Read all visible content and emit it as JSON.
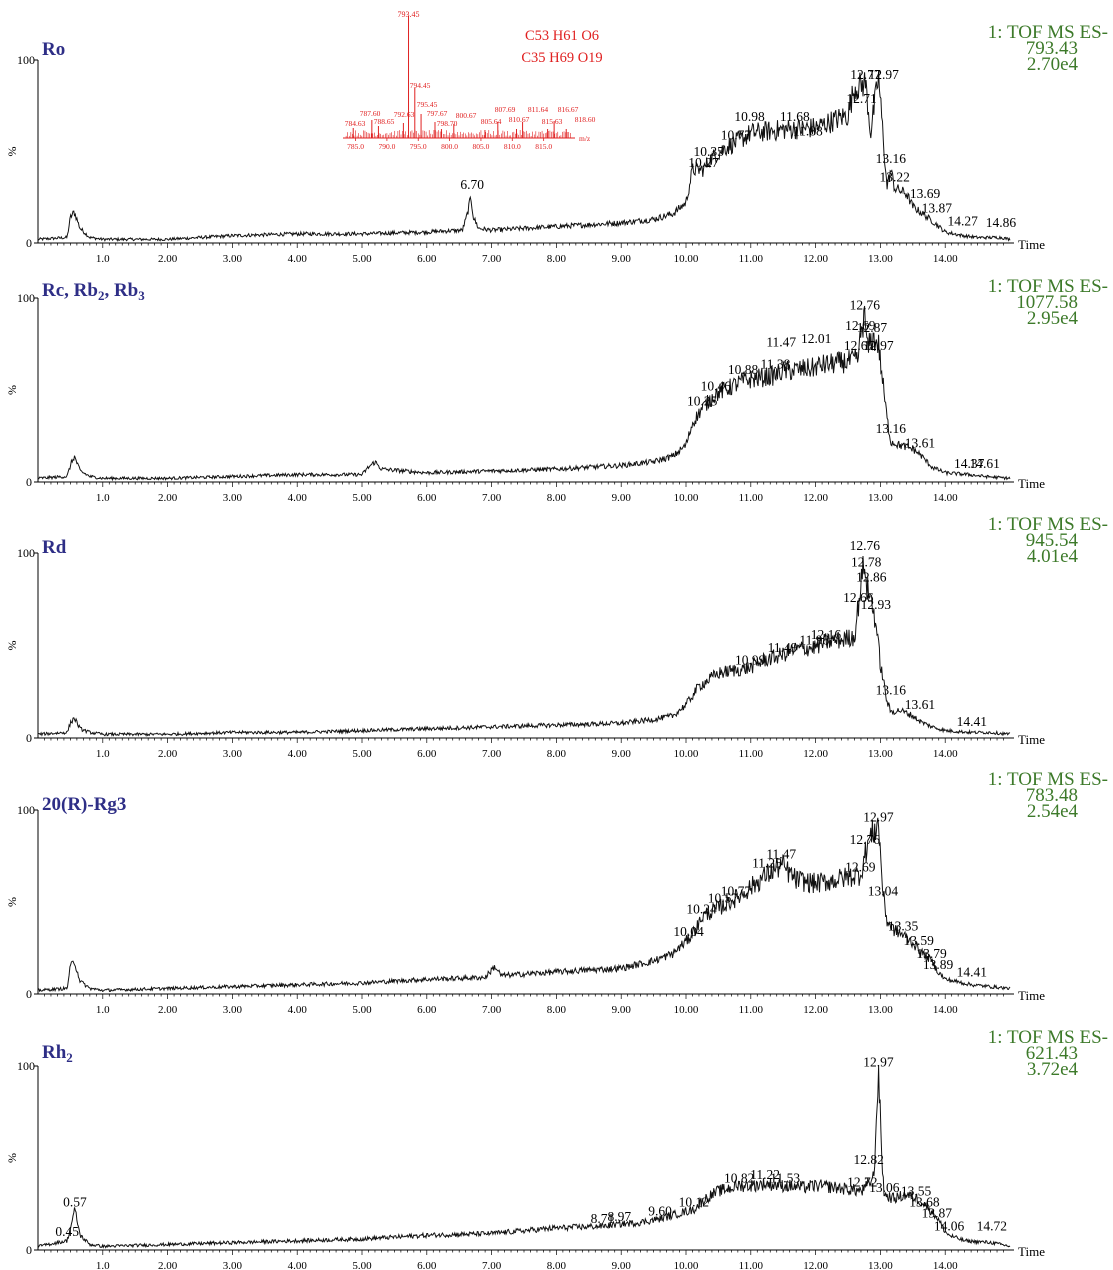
{
  "colors": {
    "trace": "#111111",
    "compound": "#2e2e86",
    "info": "#3d7a2a",
    "inset": "#e02020"
  },
  "chart_data": [
    {
      "type": "line",
      "compound": "Ro",
      "info": [
        "1: TOF MS ES-",
        "793.43",
        "2.70e4"
      ],
      "xlabel": "Time",
      "ylabel": "%",
      "xlim": [
        0,
        15
      ],
      "ylim": [
        0,
        100
      ],
      "x_ticks": [
        "1.0",
        "2.00",
        "3.00",
        "4.00",
        "5.00",
        "6.00",
        "7.00",
        "8.00",
        "9.00",
        "10.00",
        "11.00",
        "12.00",
        "13.00",
        "14.00"
      ],
      "y_ticks": [
        "100",
        "0"
      ],
      "series": [
        {
          "x": [
            0,
            0.45,
            0.5,
            0.56,
            0.65,
            0.8,
            1,
            2,
            3,
            4,
            5,
            6,
            6.55,
            6.62,
            6.68,
            6.72,
            6.8,
            7,
            8,
            9,
            9.5,
            9.8,
            10,
            10.1,
            10.27,
            10.35,
            10.6,
            10.77,
            11,
            11.5,
            12,
            12.5,
            12.6,
            12.71,
            12.77,
            12.85,
            12.97,
            13.05,
            13.1,
            13.16,
            13.22,
            13.4,
            13.5,
            13.69,
            13.87,
            14,
            14.27,
            14.5,
            14.86,
            15
          ],
          "y": [
            2,
            3,
            14,
            17,
            8,
            3,
            2,
            2,
            4,
            5,
            5,
            6,
            7,
            15,
            25,
            14,
            8,
            7,
            9,
            11,
            13,
            16,
            22,
            40,
            40,
            45,
            52,
            55,
            60,
            62,
            63,
            70,
            85,
            86,
            88,
            60,
            91,
            55,
            30,
            40,
            30,
            27,
            20,
            15,
            10,
            6,
            4,
            3,
            3,
            2
          ]
        }
      ],
      "peak_labels": [
        {
          "x": 6.7,
          "y": 28,
          "text": "6.70"
        },
        {
          "x": 10.27,
          "y": 40,
          "text": "10.27"
        },
        {
          "x": 10.35,
          "y": 46,
          "text": "10.35"
        },
        {
          "x": 10.77,
          "y": 55,
          "text": "10.77"
        },
        {
          "x": 10.98,
          "y": 65,
          "text": "10.98"
        },
        {
          "x": 11.68,
          "y": 65,
          "text": "11.68"
        },
        {
          "x": 11.88,
          "y": 57,
          "text": "11.88"
        },
        {
          "x": 12.71,
          "y": 75,
          "text": "12.71"
        },
        {
          "x": 12.77,
          "y": 88,
          "text": "12.77"
        },
        {
          "x": 13.05,
          "y": 88,
          "text": "12.97"
        },
        {
          "x": 13.16,
          "y": 42,
          "text": "13.16"
        },
        {
          "x": 13.22,
          "y": 32,
          "text": "13.22"
        },
        {
          "x": 13.69,
          "y": 23,
          "text": "13.69"
        },
        {
          "x": 13.87,
          "y": 15,
          "text": "13.87"
        },
        {
          "x": 14.27,
          "y": 8,
          "text": "14.27"
        },
        {
          "x": 14.86,
          "y": 7,
          "text": "14.86"
        }
      ],
      "inset": {
        "formulas": [
          "C53 H61 O6",
          "C35 H69 O19"
        ],
        "base_peak": "793.45",
        "peak_labels": [
          "784.63",
          "787.60",
          "788.65",
          "792.63",
          "794.45",
          "795.45",
          "797.67",
          "798.70",
          "800.67",
          "805.64",
          "807.69",
          "810.67",
          "811.64",
          "815.63",
          "816.67",
          "818.60"
        ],
        "x_ticks": [
          "785.0",
          "790.0",
          "795.0",
          "800.0",
          "805.0",
          "810.0",
          "815.0"
        ],
        "x_unit": "m/z"
      }
    },
    {
      "type": "line",
      "compound_parts": [
        "Rc, Rb",
        "2",
        ", Rb",
        "3"
      ],
      "info": [
        "1: TOF MS ES-",
        "1077.58",
        "2.95e4"
      ],
      "xlabel": "Time",
      "ylabel": "%",
      "xlim": [
        0,
        15
      ],
      "ylim": [
        0,
        100
      ],
      "x_ticks": [
        "1.0",
        "2.00",
        "3.00",
        "4.00",
        "5.00",
        "6.00",
        "7.00",
        "8.00",
        "9.00",
        "10.00",
        "11.00",
        "12.00",
        "13.00",
        "14.00"
      ],
      "y_ticks": [
        "100",
        "0"
      ],
      "series": [
        {
          "x": [
            0,
            0.45,
            0.5,
            0.56,
            0.65,
            0.8,
            1,
            2,
            3,
            4,
            5,
            5.1,
            5.2,
            5.3,
            6,
            7,
            8,
            9,
            9.5,
            9.8,
            10,
            10.1,
            10.25,
            10.46,
            10.6,
            10.88,
            11.2,
            11.38,
            11.47,
            12,
            12.01,
            12.4,
            12.6,
            12.67,
            12.69,
            12.76,
            12.8,
            12.87,
            12.97,
            13.05,
            13.1,
            13.16,
            13.3,
            13.5,
            13.61,
            13.8,
            14,
            14.37,
            14.61,
            15
          ],
          "y": [
            2,
            3,
            9,
            14,
            6,
            3,
            2,
            2,
            3,
            4,
            4,
            8,
            11,
            7,
            5,
            6,
            7,
            9,
            11,
            14,
            20,
            32,
            40,
            48,
            50,
            55,
            57,
            58,
            60,
            62,
            63,
            65,
            66,
            68,
            80,
            90,
            72,
            78,
            75,
            50,
            35,
            22,
            20,
            18,
            15,
            8,
            5,
            4,
            3,
            2
          ]
        }
      ],
      "peak_labels": [
        {
          "x": 10.25,
          "y": 40,
          "text": "10.25"
        },
        {
          "x": 10.46,
          "y": 48,
          "text": "10.46"
        },
        {
          "x": 10.88,
          "y": 57,
          "text": "10.88"
        },
        {
          "x": 11.38,
          "y": 60,
          "text": "11.38"
        },
        {
          "x": 11.47,
          "y": 72,
          "text": "11.47"
        },
        {
          "x": 12.01,
          "y": 74,
          "text": "12.01"
        },
        {
          "x": 12.67,
          "y": 70,
          "text": "12.67"
        },
        {
          "x": 12.69,
          "y": 81,
          "text": "12.69"
        },
        {
          "x": 12.76,
          "y": 92,
          "text": "12.76"
        },
        {
          "x": 12.87,
          "y": 80,
          "text": "12.87"
        },
        {
          "x": 12.97,
          "y": 70,
          "text": "12.97"
        },
        {
          "x": 13.16,
          "y": 25,
          "text": "13.16"
        },
        {
          "x": 13.61,
          "y": 17,
          "text": "13.61"
        },
        {
          "x": 14.37,
          "y": 6,
          "text": "14.37"
        },
        {
          "x": 14.61,
          "y": 6,
          "text": "14.61"
        }
      ]
    },
    {
      "type": "line",
      "compound": "Rd",
      "info": [
        "1: TOF MS ES-",
        "945.54",
        "4.01e4"
      ],
      "xlabel": "Time",
      "ylabel": "%",
      "xlim": [
        0,
        15
      ],
      "ylim": [
        0,
        100
      ],
      "x_ticks": [
        "1.0",
        "2.00",
        "3.00",
        "4.00",
        "5.00",
        "6.00",
        "7.00",
        "8.00",
        "9.00",
        "10.00",
        "11.00",
        "12.00",
        "13.00",
        "14.00"
      ],
      "y_ticks": [
        "100",
        "0"
      ],
      "series": [
        {
          "x": [
            0,
            0.45,
            0.5,
            0.56,
            0.65,
            0.8,
            1,
            2,
            3,
            4,
            5,
            6,
            7,
            8,
            9,
            9.5,
            9.8,
            10,
            10.2,
            10.5,
            10.99,
            11.2,
            11.49,
            11.7,
            11.98,
            12.16,
            12.4,
            12.6,
            12.66,
            12.72,
            12.76,
            12.78,
            12.86,
            12.93,
            13.0,
            13.1,
            13.16,
            13.3,
            13.5,
            13.61,
            13.8,
            14,
            14.41,
            14.7,
            15
          ],
          "y": [
            2,
            3,
            8,
            11,
            5,
            3,
            2,
            2,
            3,
            3,
            4,
            5,
            6,
            7,
            8,
            10,
            12,
            18,
            28,
            35,
            38,
            42,
            45,
            48,
            49,
            52,
            53,
            55,
            72,
            88,
            98,
            82,
            75,
            62,
            40,
            20,
            14,
            15,
            12,
            9,
            6,
            4,
            3,
            3,
            2
          ]
        }
      ],
      "peak_labels": [
        {
          "x": 10.99,
          "y": 38,
          "text": "10.99"
        },
        {
          "x": 11.49,
          "y": 45,
          "text": "11.49"
        },
        {
          "x": 11.98,
          "y": 49,
          "text": "11.98"
        },
        {
          "x": 12.16,
          "y": 52,
          "text": "12.16"
        },
        {
          "x": 12.66,
          "y": 72,
          "text": "12.66"
        },
        {
          "x": 12.76,
          "y": 100,
          "text": "12.76"
        },
        {
          "x": 12.78,
          "y": 91,
          "text": "12.78"
        },
        {
          "x": 12.86,
          "y": 83,
          "text": "12.86"
        },
        {
          "x": 12.93,
          "y": 68,
          "text": "12.93"
        },
        {
          "x": 13.16,
          "y": 22,
          "text": "13.16"
        },
        {
          "x": 13.61,
          "y": 14,
          "text": "13.61"
        },
        {
          "x": 14.41,
          "y": 5,
          "text": "14.41"
        }
      ]
    },
    {
      "type": "line",
      "compound": "20(R)-Rg3",
      "info": [
        "1: TOF MS ES-",
        "783.48",
        "2.54e4"
      ],
      "xlabel": "Time",
      "ylabel": "%",
      "xlim": [
        0,
        15
      ],
      "ylim": [
        0,
        100
      ],
      "x_ticks": [
        "1.0",
        "2.00",
        "3.00",
        "4.00",
        "5.00",
        "6.00",
        "7.00",
        "8.00",
        "9.00",
        "10.00",
        "11.00",
        "12.00",
        "13.00",
        "14.00"
      ],
      "y_ticks": [
        "100",
        "0"
      ],
      "series": [
        {
          "x": [
            0,
            0.45,
            0.5,
            0.56,
            0.65,
            0.8,
            1,
            2,
            3,
            4,
            5,
            6,
            6.9,
            7.05,
            7.15,
            8,
            9,
            9.5,
            9.8,
            10.04,
            10.2,
            10.24,
            10.57,
            10.77,
            11,
            11.25,
            11.47,
            11.7,
            12,
            12.3,
            12.69,
            12.76,
            12.8,
            12.97,
            13.04,
            13.1,
            13.2,
            13.35,
            13.5,
            13.59,
            13.79,
            13.89,
            14,
            14.41,
            14.7,
            15
          ],
          "y": [
            2,
            3,
            15,
            18,
            7,
            3,
            2,
            3,
            4,
            5,
            6,
            8,
            9,
            15,
            10,
            12,
            14,
            18,
            22,
            30,
            38,
            42,
            48,
            52,
            58,
            65,
            70,
            62,
            60,
            62,
            65,
            75,
            82,
            93,
            55,
            40,
            35,
            32,
            28,
            24,
            18,
            12,
            8,
            5,
            4,
            3
          ]
        }
      ],
      "peak_labels": [
        {
          "x": 10.04,
          "y": 30,
          "text": "10.04"
        },
        {
          "x": 10.24,
          "y": 42,
          "text": "10.24"
        },
        {
          "x": 10.57,
          "y": 48,
          "text": "10.57"
        },
        {
          "x": 10.77,
          "y": 52,
          "text": "10.77"
        },
        {
          "x": 11.25,
          "y": 67,
          "text": "11.25"
        },
        {
          "x": 11.47,
          "y": 72,
          "text": "11.47"
        },
        {
          "x": 12.69,
          "y": 65,
          "text": "12.69"
        },
        {
          "x": 12.76,
          "y": 80,
          "text": "12.76"
        },
        {
          "x": 12.97,
          "y": 92,
          "text": "12.97"
        },
        {
          "x": 13.04,
          "y": 52,
          "text": "13.04"
        },
        {
          "x": 13.35,
          "y": 33,
          "text": "13.35"
        },
        {
          "x": 13.59,
          "y": 25,
          "text": "13.59"
        },
        {
          "x": 13.79,
          "y": 18,
          "text": "13.79"
        },
        {
          "x": 13.89,
          "y": 12,
          "text": "13.89"
        },
        {
          "x": 14.41,
          "y": 8,
          "text": "14.41"
        }
      ]
    },
    {
      "type": "line",
      "compound_parts": [
        "Rh",
        "2"
      ],
      "info": [
        "1: TOF MS ES-",
        "621.43",
        "3.72e4"
      ],
      "xlabel": "Time",
      "ylabel": "%",
      "xlim": [
        0,
        15
      ],
      "ylim": [
        0,
        100
      ],
      "x_ticks": [
        "1.0",
        "2.00",
        "3.00",
        "4.00",
        "5.00",
        "6.00",
        "7.00",
        "8.00",
        "9.00",
        "10.00",
        "11.00",
        "12.00",
        "13.00",
        "14.00"
      ],
      "y_ticks": [
        "100",
        "0"
      ],
      "series": [
        {
          "x": [
            0,
            0.45,
            0.5,
            0.57,
            0.65,
            0.8,
            1,
            2,
            3,
            4,
            5,
            6,
            7,
            8,
            8.71,
            8.97,
            9.3,
            9.6,
            9.9,
            10.12,
            10.3,
            10.5,
            10.82,
            11,
            11.22,
            11.53,
            11.8,
            12,
            12.3,
            12.5,
            12.72,
            12.82,
            12.9,
            12.97,
            13.03,
            13.06,
            13.2,
            13.4,
            13.55,
            13.68,
            13.87,
            14.0,
            14.06,
            14.3,
            14.72,
            15
          ],
          "y": [
            2,
            5,
            12,
            22,
            8,
            3,
            2,
            3,
            4,
            5,
            6,
            8,
            9,
            12,
            13,
            14,
            15,
            17,
            20,
            22,
            28,
            32,
            35,
            35,
            36,
            35,
            34,
            35,
            34,
            33,
            32,
            36,
            40,
            98,
            45,
            30,
            28,
            30,
            28,
            25,
            18,
            10,
            8,
            5,
            4,
            2
          ]
        }
      ],
      "peak_labels": [
        {
          "x": 0.45,
          "y": 6,
          "text": "0.45"
        },
        {
          "x": 0.57,
          "y": 22,
          "text": "0.57"
        },
        {
          "x": 8.71,
          "y": 13,
          "text": "8.71"
        },
        {
          "x": 8.97,
          "y": 14,
          "text": "8.97"
        },
        {
          "x": 9.6,
          "y": 17,
          "text": "9.60"
        },
        {
          "x": 10.12,
          "y": 22,
          "text": "10.12"
        },
        {
          "x": 10.82,
          "y": 35,
          "text": "10.82"
        },
        {
          "x": 11.22,
          "y": 37,
          "text": "11.22"
        },
        {
          "x": 11.53,
          "y": 35,
          "text": "11.53"
        },
        {
          "x": 12.72,
          "y": 33,
          "text": "12.72"
        },
        {
          "x": 12.82,
          "y": 45,
          "text": "12.82"
        },
        {
          "x": 12.97,
          "y": 98,
          "text": "12.97"
        },
        {
          "x": 13.06,
          "y": 30,
          "text": "13.06"
        },
        {
          "x": 13.55,
          "y": 28,
          "text": "13.55"
        },
        {
          "x": 13.68,
          "y": 22,
          "text": "13.68"
        },
        {
          "x": 13.87,
          "y": 16,
          "text": "13.87"
        },
        {
          "x": 14.06,
          "y": 9,
          "text": "14.06"
        },
        {
          "x": 14.72,
          "y": 9,
          "text": "14.72"
        }
      ]
    }
  ]
}
